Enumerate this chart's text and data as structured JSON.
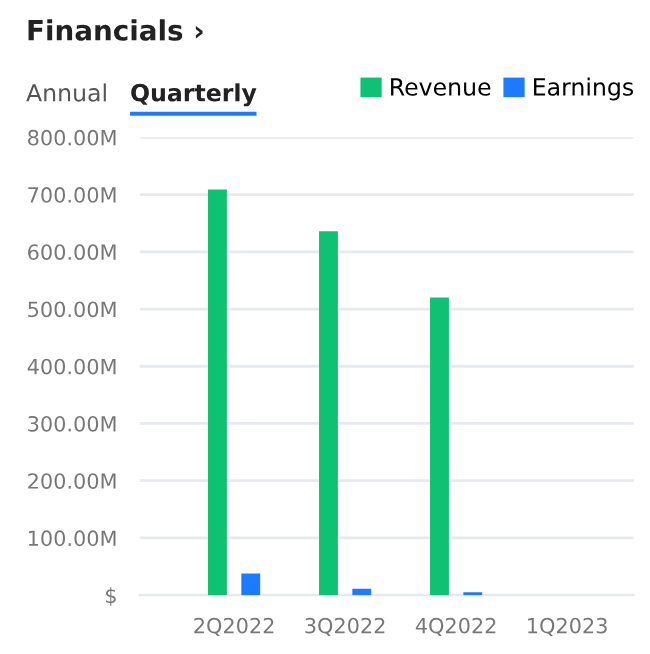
{
  "chart_data": {
    "type": "bar",
    "title": "Financials ›",
    "annotations": [
      "Annual",
      "Quarterly"
    ],
    "categories": [
      "2Q2022",
      "3Q2022",
      "4Q2022",
      "1Q2023"
    ],
    "series": [
      {
        "name": "Revenue",
        "color": "#10c173",
        "values": [
          709,
          636,
          520,
          null
        ]
      },
      {
        "name": "Earnings",
        "color": "#1e7bff",
        "values": [
          38,
          11,
          5,
          null
        ]
      }
    ],
    "ylim": [
      0,
      800
    ],
    "yticks": [
      {
        "value": 0,
        "label": "$"
      },
      {
        "value": 100,
        "label": "100.00M"
      },
      {
        "value": 200,
        "label": "200.00M"
      },
      {
        "value": 300,
        "label": "300.00M"
      },
      {
        "value": 400,
        "label": "400.00M"
      },
      {
        "value": 500,
        "label": "500.00M"
      },
      {
        "value": 600,
        "label": "600.00M"
      },
      {
        "value": 700,
        "label": "700.00M"
      },
      {
        "value": 800,
        "label": "800.00M"
      }
    ],
    "grid": "y",
    "legend": "top right"
  }
}
